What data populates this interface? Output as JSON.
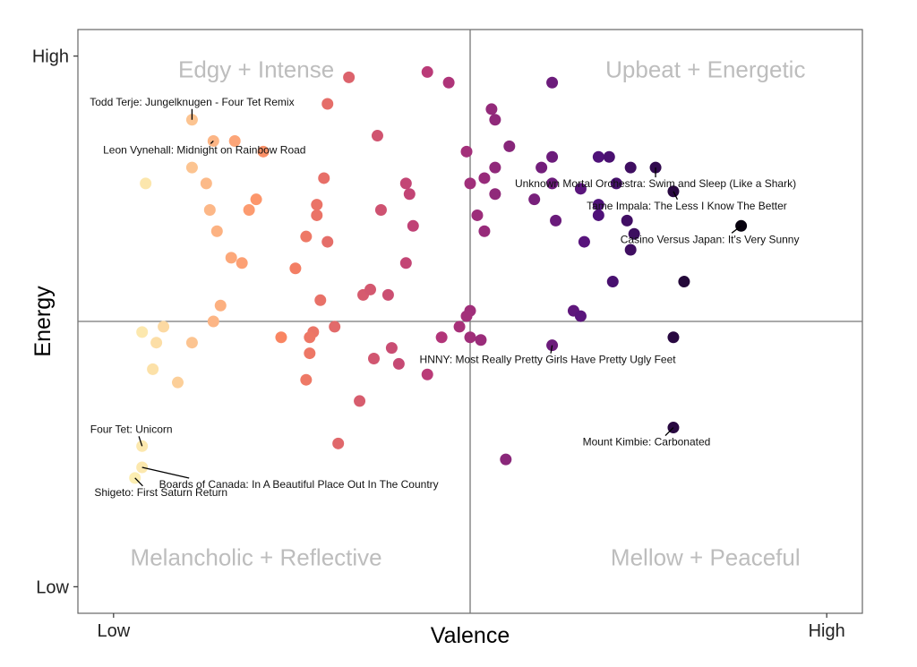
{
  "chart_data": {
    "type": "scatter",
    "xlabel": "Valence",
    "ylabel": "Energy",
    "x_ticks": [
      "Low",
      "High"
    ],
    "y_ticks": [
      "High",
      "Low"
    ],
    "xlim": [
      -0.05,
      1.05
    ],
    "ylim": [
      -0.05,
      1.05
    ],
    "grid": false,
    "reference_lines": {
      "x": 0.5,
      "y": 0.5
    },
    "quadrant_labels": {
      "top_left": "Edgy + Intense",
      "top_right": "Upbeat + Energetic",
      "bottom_left": "Melancholic + Reflective",
      "bottom_right": "Mellow + Peaceful"
    },
    "color_scale": {
      "low": "#fcfdbf",
      "mid_low": "#fc8961",
      "mid": "#b73779",
      "mid_high": "#51127c",
      "high": "#000004"
    },
    "points": [
      {
        "x": 0.04,
        "y": 0.225
      },
      {
        "x": 0.04,
        "y": 0.265
      },
      {
        "x": 0.03,
        "y": 0.205
      },
      {
        "x": 0.04,
        "y": 0.48
      },
      {
        "x": 0.07,
        "y": 0.49
      },
      {
        "x": 0.06,
        "y": 0.46
      },
      {
        "x": 0.055,
        "y": 0.41
      },
      {
        "x": 0.11,
        "y": 0.46
      },
      {
        "x": 0.09,
        "y": 0.385
      },
      {
        "x": 0.045,
        "y": 0.76
      },
      {
        "x": 0.11,
        "y": 0.88
      },
      {
        "x": 0.14,
        "y": 0.84
      },
      {
        "x": 0.17,
        "y": 0.84
      },
      {
        "x": 0.21,
        "y": 0.82
      },
      {
        "x": 0.11,
        "y": 0.79
      },
      {
        "x": 0.13,
        "y": 0.76
      },
      {
        "x": 0.135,
        "y": 0.71
      },
      {
        "x": 0.2,
        "y": 0.73
      },
      {
        "x": 0.19,
        "y": 0.71
      },
      {
        "x": 0.18,
        "y": 0.61
      },
      {
        "x": 0.165,
        "y": 0.62
      },
      {
        "x": 0.145,
        "y": 0.67
      },
      {
        "x": 0.15,
        "y": 0.53
      },
      {
        "x": 0.14,
        "y": 0.5
      },
      {
        "x": 0.33,
        "y": 0.96
      },
      {
        "x": 0.3,
        "y": 0.91
      },
      {
        "x": 0.37,
        "y": 0.85
      },
      {
        "x": 0.295,
        "y": 0.77
      },
      {
        "x": 0.285,
        "y": 0.72
      },
      {
        "x": 0.285,
        "y": 0.7
      },
      {
        "x": 0.27,
        "y": 0.66
      },
      {
        "x": 0.3,
        "y": 0.65
      },
      {
        "x": 0.255,
        "y": 0.6
      },
      {
        "x": 0.375,
        "y": 0.71
      },
      {
        "x": 0.415,
        "y": 0.74
      },
      {
        "x": 0.41,
        "y": 0.76
      },
      {
        "x": 0.42,
        "y": 0.68
      },
      {
        "x": 0.41,
        "y": 0.61
      },
      {
        "x": 0.44,
        "y": 0.97
      },
      {
        "x": 0.47,
        "y": 0.95
      },
      {
        "x": 0.35,
        "y": 0.55
      },
      {
        "x": 0.36,
        "y": 0.56
      },
      {
        "x": 0.385,
        "y": 0.55
      },
      {
        "x": 0.29,
        "y": 0.54
      },
      {
        "x": 0.235,
        "y": 0.47
      },
      {
        "x": 0.28,
        "y": 0.48
      },
      {
        "x": 0.275,
        "y": 0.47
      },
      {
        "x": 0.31,
        "y": 0.49
      },
      {
        "x": 0.275,
        "y": 0.44
      },
      {
        "x": 0.27,
        "y": 0.39
      },
      {
        "x": 0.39,
        "y": 0.45
      },
      {
        "x": 0.365,
        "y": 0.43
      },
      {
        "x": 0.4,
        "y": 0.42
      },
      {
        "x": 0.44,
        "y": 0.4
      },
      {
        "x": 0.345,
        "y": 0.35
      },
      {
        "x": 0.315,
        "y": 0.27
      },
      {
        "x": 0.46,
        "y": 0.47
      },
      {
        "x": 0.485,
        "y": 0.49
      },
      {
        "x": 0.5,
        "y": 0.52
      },
      {
        "x": 0.495,
        "y": 0.51
      },
      {
        "x": 0.495,
        "y": 0.82
      },
      {
        "x": 0.5,
        "y": 0.76
      },
      {
        "x": 0.51,
        "y": 0.7
      },
      {
        "x": 0.52,
        "y": 0.67
      },
      {
        "x": 0.52,
        "y": 0.77
      },
      {
        "x": 0.535,
        "y": 0.79
      },
      {
        "x": 0.535,
        "y": 0.74
      },
      {
        "x": 0.53,
        "y": 0.9
      },
      {
        "x": 0.535,
        "y": 0.88
      },
      {
        "x": 0.555,
        "y": 0.83
      },
      {
        "x": 0.615,
        "y": 0.95
      },
      {
        "x": 0.6,
        "y": 0.79
      },
      {
        "x": 0.615,
        "y": 0.81
      },
      {
        "x": 0.59,
        "y": 0.73
      },
      {
        "x": 0.615,
        "y": 0.76
      },
      {
        "x": 0.62,
        "y": 0.69
      },
      {
        "x": 0.655,
        "y": 0.75
      },
      {
        "x": 0.66,
        "y": 0.65
      },
      {
        "x": 0.68,
        "y": 0.81
      },
      {
        "x": 0.695,
        "y": 0.81
      },
      {
        "x": 0.705,
        "y": 0.76
      },
      {
        "x": 0.68,
        "y": 0.72
      },
      {
        "x": 0.68,
        "y": 0.7
      },
      {
        "x": 0.725,
        "y": 0.79
      },
      {
        "x": 0.72,
        "y": 0.69
      },
      {
        "x": 0.73,
        "y": 0.665
      },
      {
        "x": 0.725,
        "y": 0.635
      },
      {
        "x": 0.7,
        "y": 0.575
      },
      {
        "x": 0.8,
        "y": 0.575
      },
      {
        "x": 0.645,
        "y": 0.52
      },
      {
        "x": 0.655,
        "y": 0.51
      },
      {
        "x": 0.5,
        "y": 0.47
      },
      {
        "x": 0.515,
        "y": 0.465
      },
      {
        "x": 0.615,
        "y": 0.455
      },
      {
        "x": 0.785,
        "y": 0.47
      },
      {
        "x": 0.785,
        "y": 0.3
      },
      {
        "x": 0.55,
        "y": 0.24
      },
      {
        "x": 0.76,
        "y": 0.79
      },
      {
        "x": 0.785,
        "y": 0.745
      },
      {
        "x": 0.88,
        "y": 0.68
      }
    ],
    "annotations": [
      {
        "text": "Todd Terje: Jungelknugen - Four Tet Remix",
        "x": 0.11,
        "y": 0.88
      },
      {
        "text": "Leon Vynehall: Midnight on Rainbow Road",
        "x": 0.14,
        "y": 0.84
      },
      {
        "text": "Unknown Mortal Orchestra: Swim and Sleep (Like a Shark)",
        "x": 0.76,
        "y": 0.79
      },
      {
        "text": "Tame Impala: The Less I Know The Better",
        "x": 0.785,
        "y": 0.745
      },
      {
        "text": "Casino Versus Japan: It's Very Sunny",
        "x": 0.88,
        "y": 0.68
      },
      {
        "text": "HNNY: Most Really Pretty Girls Have Pretty Ugly Feet",
        "x": 0.615,
        "y": 0.455
      },
      {
        "text": "Mount Kimbie: Carbonated",
        "x": 0.785,
        "y": 0.3
      },
      {
        "text": "Four Tet: Unicorn",
        "x": 0.04,
        "y": 0.265
      },
      {
        "text": "Boards of Canada: In A Beautiful Place Out In The Country",
        "x": 0.04,
        "y": 0.225
      },
      {
        "text": "Shigeto: First Saturn Return",
        "x": 0.03,
        "y": 0.205
      }
    ]
  }
}
